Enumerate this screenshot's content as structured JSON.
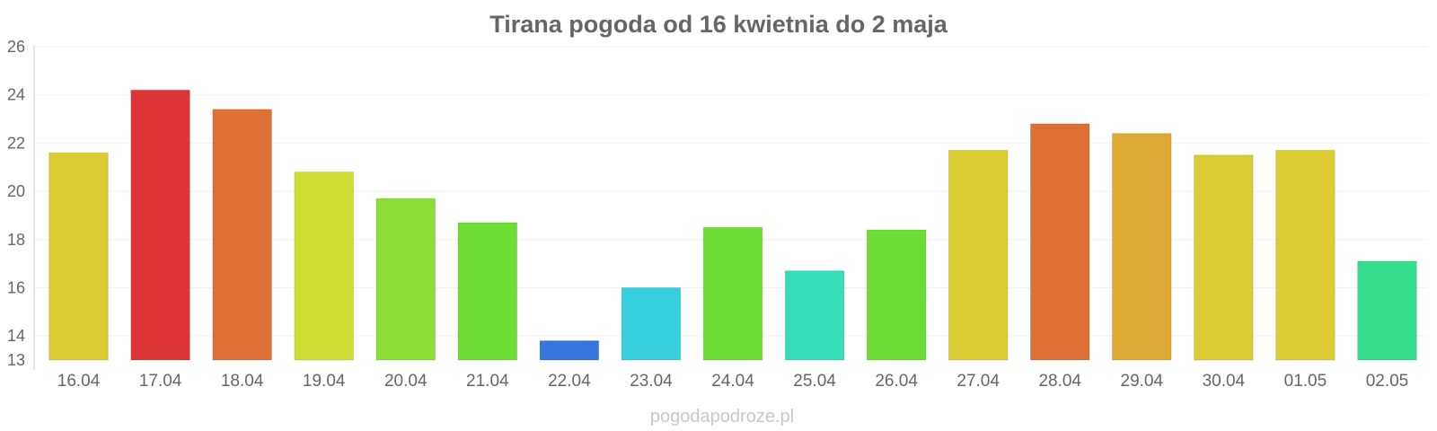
{
  "chart_data": {
    "type": "bar",
    "title": "Tirana pogoda od 16 kwietnia do 2 maja",
    "xlabel": "",
    "ylabel": "",
    "categories": [
      "16.04",
      "17.04",
      "18.04",
      "19.04",
      "20.04",
      "21.04",
      "22.04",
      "23.04",
      "24.04",
      "25.04",
      "26.04",
      "27.04",
      "28.04",
      "29.04",
      "30.04",
      "01.05",
      "02.05"
    ],
    "values": [
      21.6,
      24.2,
      23.4,
      20.8,
      19.7,
      18.7,
      13.8,
      16.0,
      18.5,
      16.7,
      18.4,
      21.7,
      22.8,
      22.4,
      21.5,
      21.7,
      17.1
    ],
    "colors": [
      "#dccb33",
      "#dd3537",
      "#dd7035",
      "#cedd33",
      "#8cdd35",
      "#6bdd35",
      "#3577dd",
      "#35cfdd",
      "#6bdd35",
      "#35ddb9",
      "#6bdd35",
      "#dccb33",
      "#dd7035",
      "#dda935",
      "#dccb33",
      "#dccb33",
      "#35dd8c"
    ],
    "yticks": [
      13,
      14,
      16,
      18,
      20,
      22,
      24,
      26
    ],
    "ylim": [
      13,
      26
    ],
    "grid": true,
    "legend": "none"
  },
  "footer": "pogodapodroze.pl"
}
